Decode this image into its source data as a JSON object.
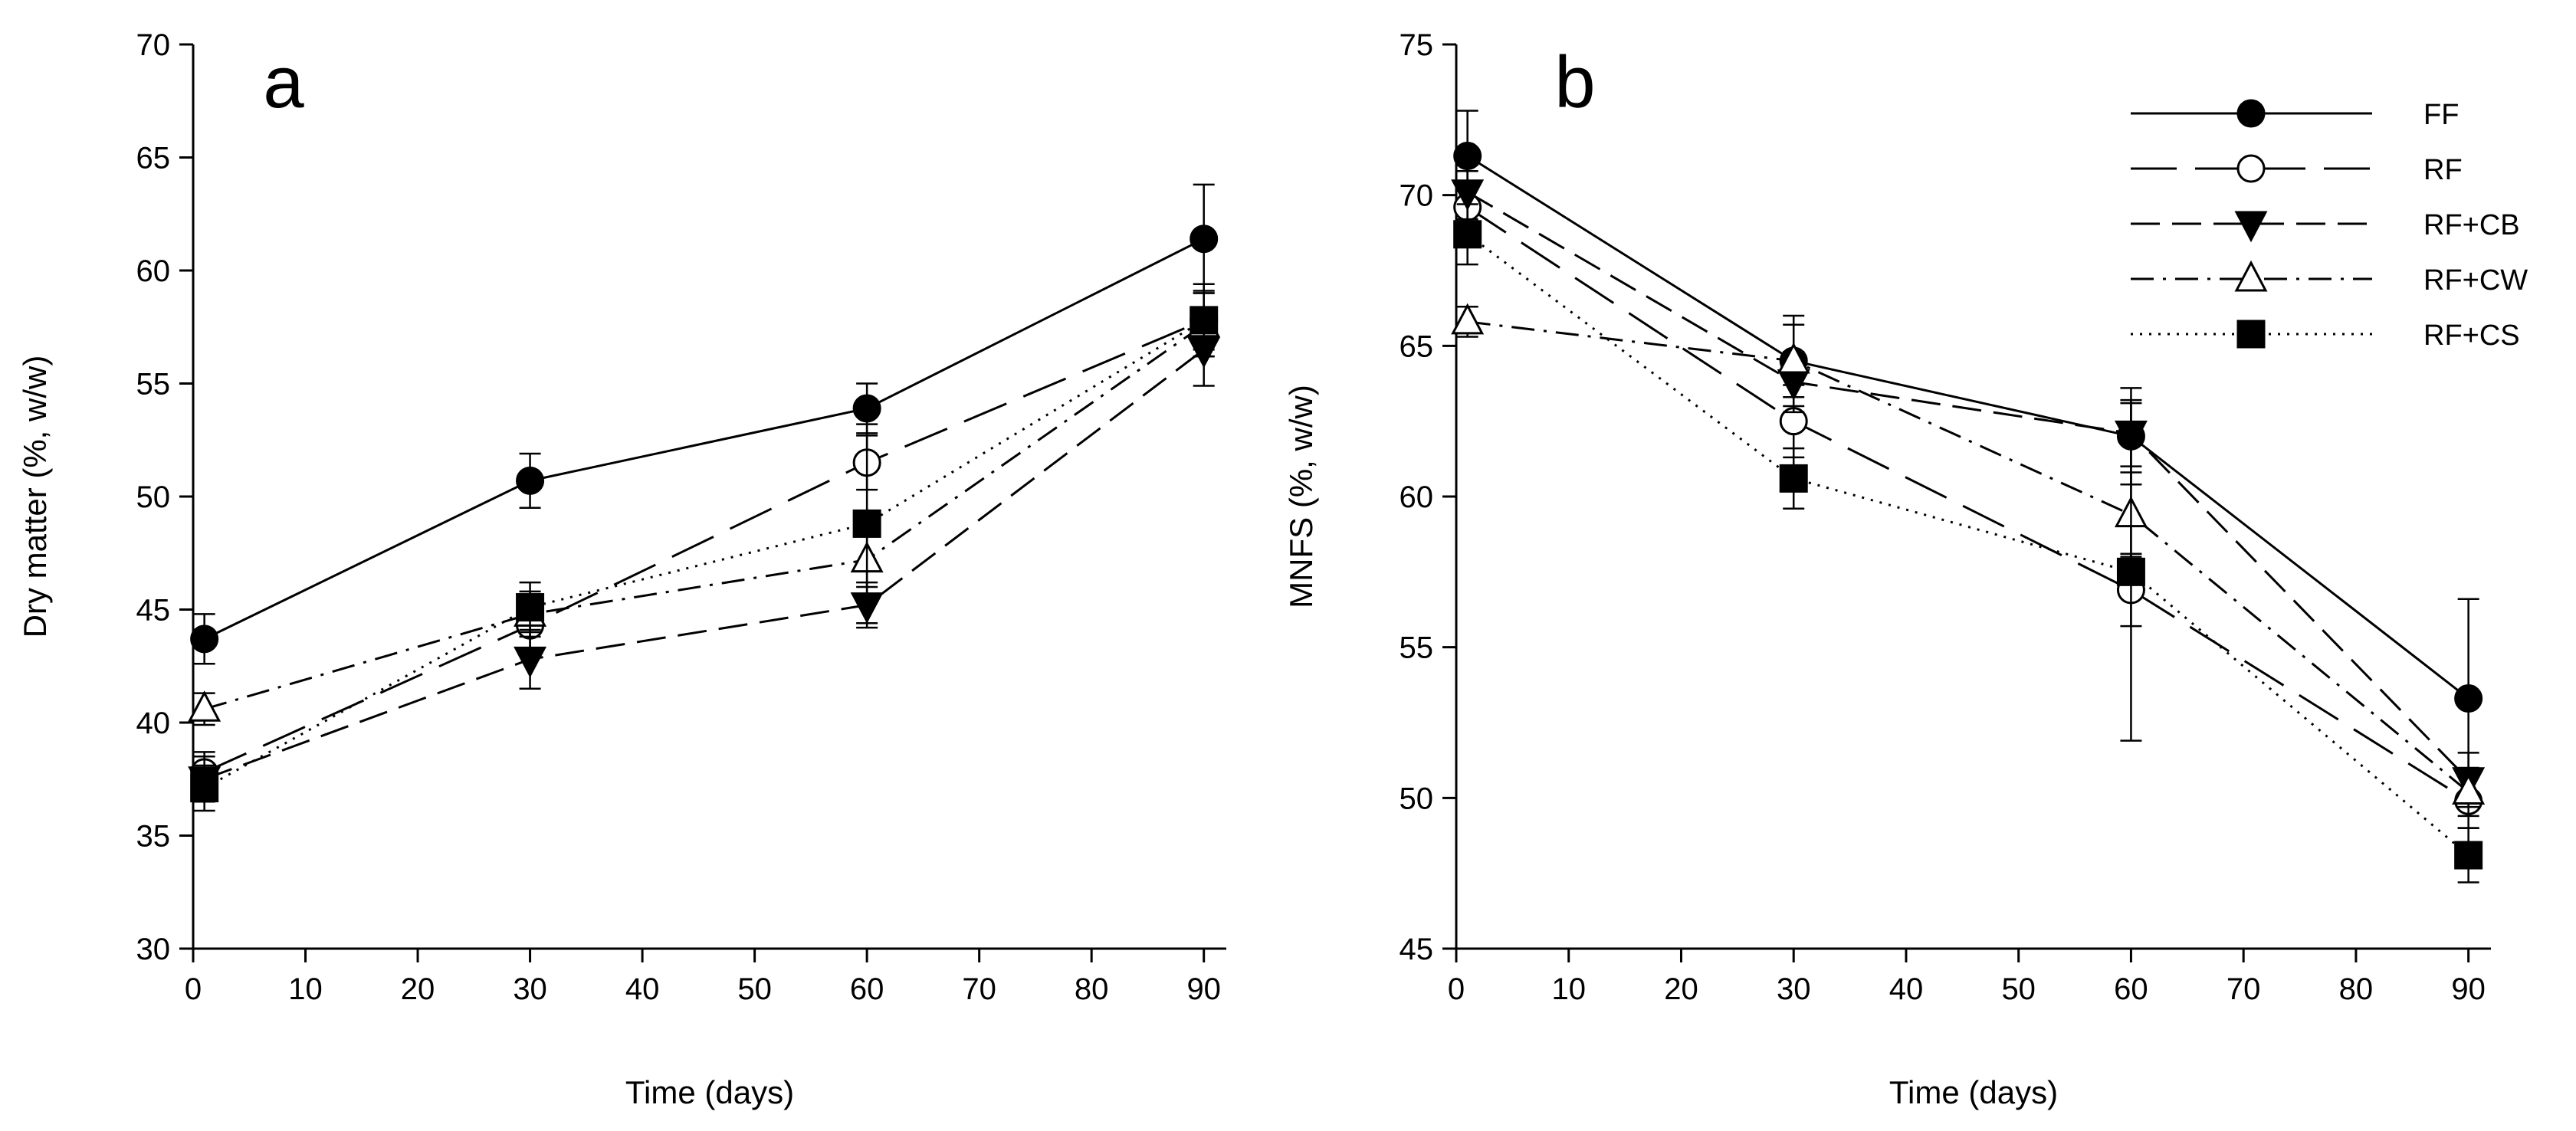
{
  "chart_data": [
    {
      "type": "line",
      "panel_label": "a",
      "xlabel": "Time (days)",
      "ylabel": "Dry matter (%, w/w)",
      "xlim": [
        0,
        92
      ],
      "ylim": [
        30,
        70
      ],
      "x_ticks": [
        0,
        10,
        20,
        30,
        40,
        50,
        60,
        70,
        80,
        90
      ],
      "y_ticks": [
        30,
        35,
        40,
        45,
        50,
        55,
        60,
        65,
        70
      ],
      "grid": false,
      "legend": "none",
      "series": [
        {
          "name": "FF",
          "marker": "circle-filled",
          "line": "solid",
          "x": [
            1,
            30,
            60,
            90
          ],
          "y": [
            43.7,
            50.7,
            53.9,
            61.4
          ],
          "err": [
            1.1,
            1.2,
            1.1,
            2.4
          ]
        },
        {
          "name": "RF",
          "marker": "circle-open",
          "line": "long-dash",
          "x": [
            1,
            30,
            60,
            90
          ],
          "y": [
            37.8,
            44.3,
            51.5,
            57.8
          ],
          "err": [
            0.9,
            1.1,
            1.2,
            1.6
          ]
        },
        {
          "name": "RF+CB",
          "marker": "triangle-down-filled",
          "line": "dash",
          "x": [
            1,
            30,
            60,
            90
          ],
          "y": [
            37.5,
            42.8,
            45.2,
            56.5
          ],
          "err": [
            1.0,
            1.3,
            1.0,
            1.6
          ]
        },
        {
          "name": "RF+CW",
          "marker": "triangle-up-open",
          "line": "dash-dot",
          "x": [
            1,
            30,
            60,
            90
          ],
          "y": [
            40.6,
            44.8,
            47.2,
            57.6
          ],
          "err": [
            0.7,
            1.0,
            1.2,
            1.4
          ]
        },
        {
          "name": "RF+CS",
          "marker": "square-filled",
          "line": "dotted",
          "x": [
            1,
            30,
            60,
            90
          ],
          "y": [
            37.1,
            45.1,
            48.8,
            57.8
          ],
          "err": [
            1.0,
            1.1,
            4.4,
            1.3
          ]
        }
      ]
    },
    {
      "type": "line",
      "panel_label": "b",
      "xlabel": "Time (days)",
      "ylabel": "MNFS (%, w/w)",
      "xlim": [
        0,
        92
      ],
      "ylim": [
        45,
        75
      ],
      "x_ticks": [
        0,
        10,
        20,
        30,
        40,
        50,
        60,
        70,
        80,
        90
      ],
      "y_ticks": [
        45,
        50,
        55,
        60,
        65,
        70,
        75
      ],
      "grid": false,
      "legend": "top-right",
      "series": [
        {
          "name": "FF",
          "marker": "circle-filled",
          "line": "solid",
          "x": [
            1,
            30,
            60,
            90
          ],
          "y": [
            71.3,
            64.5,
            62.0,
            53.3
          ],
          "err": [
            1.5,
            1.5,
            1.6,
            3.3
          ]
        },
        {
          "name": "RF",
          "marker": "circle-open",
          "line": "long-dash",
          "x": [
            1,
            30,
            60,
            90
          ],
          "y": [
            69.6,
            62.5,
            56.9,
            49.9
          ],
          "err": [
            1.2,
            1.2,
            1.2,
            0.9
          ]
        },
        {
          "name": "RF+CB",
          "marker": "triangle-down-filled",
          "line": "dash",
          "x": [
            1,
            30,
            60,
            90
          ],
          "y": [
            70.1,
            63.8,
            62.1,
            50.6
          ],
          "err": [
            0.9,
            1.0,
            1.1,
            0.9
          ]
        },
        {
          "name": "RF+CW",
          "marker": "triangle-up-open",
          "line": "dash-dot",
          "x": [
            1,
            30,
            60,
            90
          ],
          "y": [
            65.8,
            64.5,
            59.4,
            50.2
          ],
          "err": [
            0.5,
            1.2,
            1.4,
            0.8
          ]
        },
        {
          "name": "RF+CS",
          "marker": "square-filled",
          "line": "dotted",
          "x": [
            1,
            30,
            60,
            90
          ],
          "y": [
            68.7,
            60.6,
            57.5,
            48.1
          ],
          "err": [
            1.0,
            1.0,
            5.6,
            0.9
          ]
        }
      ]
    }
  ]
}
